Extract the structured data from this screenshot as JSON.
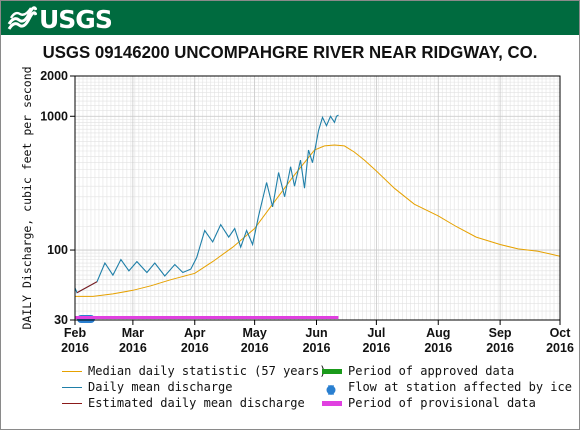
{
  "header": {
    "logo_text": "USGS",
    "title": "USGS 09146200 UNCOMPAHGRE RIVER NEAR RIDGWAY, CO."
  },
  "colors": {
    "banner": "#006b3f",
    "median": "#e6a100",
    "daily_mean": "#1f7fa8",
    "estimated": "#8b1a1a",
    "approved": "#1a9a1a",
    "ice": "#2a7fd0",
    "provisional": "#e040e0"
  },
  "chart_data": {
    "type": "line",
    "title": "USGS 09146200 UNCOMPAHGRE RIVER NEAR RIDGWAY, CO.",
    "ylabel": "DAILY Discharge, cubic feet per second",
    "xlabel": "",
    "yscale": "log",
    "ylim": [
      30,
      2000
    ],
    "xlim": [
      "2016-02-01",
      "2016-10-01"
    ],
    "y_ticks": [
      "30",
      "100",
      "1000",
      "2000"
    ],
    "x_ticks": [
      {
        "month": "Feb",
        "year": "2016",
        "date": "2016-02-01"
      },
      {
        "month": "Mar",
        "year": "2016",
        "date": "2016-03-01"
      },
      {
        "month": "Apr",
        "year": "2016",
        "date": "2016-04-01"
      },
      {
        "month": "May",
        "year": "2016",
        "date": "2016-05-01"
      },
      {
        "month": "Jun",
        "year": "2016",
        "date": "2016-06-01"
      },
      {
        "month": "Jul",
        "year": "2016",
        "date": "2016-07-01"
      },
      {
        "month": "Aug",
        "year": "2016",
        "date": "2016-08-01"
      },
      {
        "month": "Sep",
        "year": "2016",
        "date": "2016-09-01"
      },
      {
        "month": "Oct",
        "year": "2016",
        "date": "2016-10-01"
      }
    ],
    "grid": true,
    "legend_position": "bottom",
    "series": [
      {
        "name": "Median daily statistic (57 years)",
        "color": "#e6a100",
        "x": [
          "2016-02-01",
          "2016-02-10",
          "2016-02-20",
          "2016-03-01",
          "2016-03-10",
          "2016-03-20",
          "2016-04-01",
          "2016-04-10",
          "2016-04-20",
          "2016-05-01",
          "2016-05-10",
          "2016-05-20",
          "2016-05-31",
          "2016-06-05",
          "2016-06-10",
          "2016-06-15",
          "2016-06-20",
          "2016-06-25",
          "2016-07-01",
          "2016-07-10",
          "2016-07-20",
          "2016-08-01",
          "2016-08-10",
          "2016-08-20",
          "2016-09-01",
          "2016-09-10",
          "2016-09-20",
          "2016-10-01"
        ],
        "y": [
          45,
          45,
          47,
          50,
          54,
          60,
          67,
          82,
          105,
          145,
          220,
          350,
          560,
          600,
          610,
          600,
          540,
          470,
          390,
          290,
          220,
          180,
          150,
          125,
          110,
          102,
          98,
          90
        ]
      },
      {
        "name": "Daily mean discharge",
        "color": "#1f7fa8",
        "x": [
          "2016-02-01",
          "2016-02-02",
          "2016-02-12",
          "2016-02-16",
          "2016-02-20",
          "2016-02-24",
          "2016-02-28",
          "2016-03-03",
          "2016-03-08",
          "2016-03-12",
          "2016-03-17",
          "2016-03-22",
          "2016-03-26",
          "2016-03-30",
          "2016-04-02",
          "2016-04-06",
          "2016-04-10",
          "2016-04-14",
          "2016-04-18",
          "2016-04-21",
          "2016-04-24",
          "2016-04-27",
          "2016-04-30",
          "2016-05-03",
          "2016-05-07",
          "2016-05-10",
          "2016-05-13",
          "2016-05-16",
          "2016-05-19",
          "2016-05-21",
          "2016-05-24",
          "2016-05-26",
          "2016-05-28",
          "2016-05-30",
          "2016-06-02",
          "2016-06-04",
          "2016-06-06",
          "2016-06-08",
          "2016-06-10",
          "2016-06-11",
          "2016-06-12"
        ],
        "y": [
          52,
          48,
          58,
          80,
          65,
          85,
          70,
          82,
          68,
          80,
          64,
          78,
          68,
          72,
          88,
          140,
          115,
          155,
          125,
          145,
          105,
          140,
          110,
          180,
          320,
          210,
          380,
          250,
          420,
          300,
          470,
          290,
          560,
          450,
          780,
          980,
          850,
          1000,
          900,
          1000,
          1020
        ]
      },
      {
        "name": "Estimated daily mean discharge",
        "color": "#8b1a1a",
        "x": [
          "2016-02-02",
          "2016-02-12"
        ],
        "y": [
          48,
          58
        ]
      }
    ],
    "periods": [
      {
        "name": "Period of approved data",
        "color": "#1a9a1a",
        "present": false
      },
      {
        "name": "Flow at station affected by ice",
        "color": "#2a7fd0",
        "from": "2016-02-01",
        "to": "2016-02-12"
      },
      {
        "name": "Period of provisional data",
        "color": "#e040e0",
        "from": "2016-02-01",
        "to": "2016-06-12"
      }
    ]
  },
  "legend": {
    "items": [
      {
        "label": "Median daily statistic (57 years)",
        "kind": "line",
        "color": "#e6a100"
      },
      {
        "label": "Period of approved data",
        "kind": "bar",
        "color": "#1a9a1a"
      },
      {
        "label": "Daily mean discharge",
        "kind": "line",
        "color": "#1f7fa8"
      },
      {
        "label": "Flow at station affected by ice",
        "kind": "dot",
        "color": "#2a7fd0"
      },
      {
        "label": "Estimated daily mean discharge",
        "kind": "line",
        "color": "#8b1a1a"
      },
      {
        "label": "Period of provisional data",
        "kind": "bar",
        "color": "#e040e0"
      }
    ]
  }
}
